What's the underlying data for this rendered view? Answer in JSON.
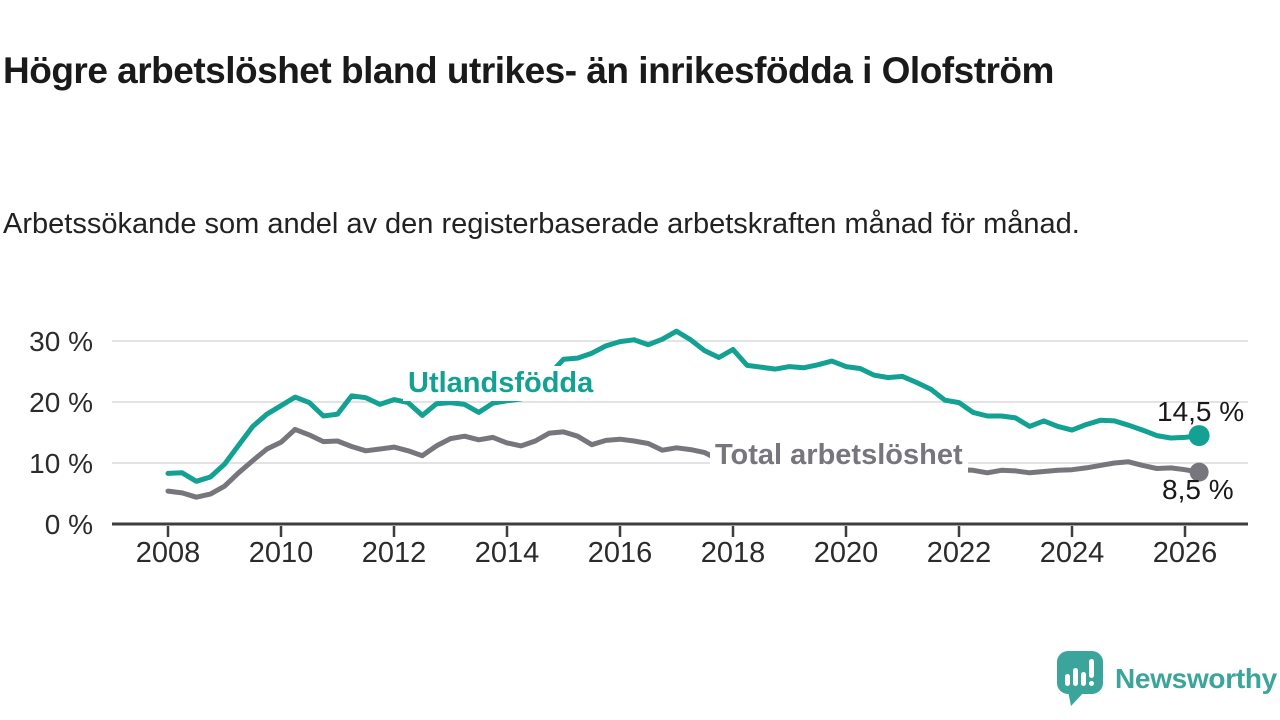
{
  "header": {
    "title": "Högre arbetslöshet bland utrikes- än inrikesfödda i Olofström",
    "subtitle": "Arbetssökande som andel av den registerbaserade arbetskraften månad för månad."
  },
  "chart_data": {
    "type": "line",
    "title": "Högre arbetslöshet bland utrikes- än inrikesfödda i Olofström",
    "subtitle": "Arbetssökande som andel av den registerbaserade arbetskraften månad för månad.",
    "x_unit": "year (monthly series shown, sampled quarterly here)",
    "grid": "horizontal",
    "legend_position": "inline-labels-on-lines",
    "ylim": [
      0,
      33
    ],
    "x": [
      2008.0,
      2008.25,
      2008.5,
      2008.75,
      2009.0,
      2009.25,
      2009.5,
      2009.75,
      2010.0,
      2010.25,
      2010.5,
      2010.75,
      2011.0,
      2011.25,
      2011.5,
      2011.75,
      2012.0,
      2012.25,
      2012.5,
      2012.75,
      2013.0,
      2013.25,
      2013.5,
      2013.75,
      2014.0,
      2014.25,
      2014.5,
      2014.75,
      2015.0,
      2015.25,
      2015.5,
      2015.75,
      2016.0,
      2016.25,
      2016.5,
      2016.75,
      2017.0,
      2017.25,
      2017.5,
      2017.75,
      2018.0,
      2018.25,
      2018.5,
      2018.75,
      2019.0,
      2019.25,
      2019.5,
      2019.75,
      2020.0,
      2020.25,
      2020.5,
      2020.75,
      2021.0,
      2021.25,
      2021.5,
      2021.75,
      2022.0,
      2022.25,
      2022.5,
      2022.75,
      2023.0,
      2023.25,
      2023.5,
      2023.75,
      2024.0,
      2024.25,
      2024.5,
      2024.75,
      2025.0,
      2025.25,
      2025.5,
      2025.75,
      2026.0,
      2026.25
    ],
    "series": [
      {
        "name": "Utlandsfödda",
        "color": "#12a192",
        "end_label": "14,5 %",
        "end_value": 14.5,
        "values": [
          8.3,
          8.4,
          7.0,
          7.7,
          9.8,
          12.9,
          16.0,
          18.0,
          19.4,
          20.8,
          19.9,
          17.7,
          18.0,
          21.0,
          20.7,
          19.6,
          20.4,
          19.9,
          17.8,
          19.7,
          19.9,
          19.6,
          18.3,
          19.8,
          20.2,
          20.5,
          21.2,
          24.5,
          27.0,
          27.2,
          28.0,
          29.2,
          29.9,
          30.2,
          29.4,
          30.3,
          31.6,
          30.2,
          28.4,
          27.3,
          28.6,
          26.0,
          25.7,
          25.4,
          25.8,
          25.6,
          26.1,
          26.7,
          25.8,
          25.5,
          24.4,
          24.0,
          24.2,
          23.2,
          22.1,
          20.3,
          19.9,
          18.3,
          17.7,
          17.7,
          17.4,
          16.0,
          16.9,
          16.0,
          15.4,
          16.3,
          17.0,
          16.9,
          16.2,
          15.4,
          14.5,
          14.1,
          14.2,
          14.5
        ]
      },
      {
        "name": "Total arbetslöshet",
        "color": "#76767c",
        "end_label": "8,5 %",
        "end_value": 8.5,
        "values": [
          5.4,
          5.1,
          4.4,
          4.9,
          6.2,
          8.4,
          10.4,
          12.3,
          13.4,
          15.5,
          14.6,
          13.5,
          13.6,
          12.7,
          12.0,
          12.3,
          12.6,
          12.0,
          11.2,
          12.8,
          14.0,
          14.4,
          13.8,
          14.2,
          13.3,
          12.8,
          13.6,
          14.9,
          15.1,
          14.4,
          13.0,
          13.7,
          13.9,
          13.6,
          13.2,
          12.1,
          12.5,
          12.2,
          11.7,
          10.5,
          10.0,
          9.6,
          9.4,
          9.3,
          9.2,
          9.1,
          9.2,
          9.3,
          9.5,
          10.0,
          10.0,
          9.7,
          9.5,
          9.3,
          9.1,
          9.0,
          8.9,
          8.8,
          8.4,
          8.8,
          8.7,
          8.4,
          8.6,
          8.8,
          8.9,
          9.2,
          9.6,
          10.0,
          10.2,
          9.6,
          9.1,
          9.2,
          8.9,
          8.5
        ]
      }
    ],
    "xticks": [
      {
        "value": 2008,
        "label": "2008"
      },
      {
        "value": 2010,
        "label": "2010"
      },
      {
        "value": 2012,
        "label": "2012"
      },
      {
        "value": 2014,
        "label": "2014"
      },
      {
        "value": 2016,
        "label": "2016"
      },
      {
        "value": 2018,
        "label": "2018"
      },
      {
        "value": 2020,
        "label": "2020"
      },
      {
        "value": 2022,
        "label": "2022"
      },
      {
        "value": 2024,
        "label": "2024"
      },
      {
        "value": 2026,
        "label": "2026"
      }
    ],
    "yticks": [
      {
        "value": 0,
        "label": "0 %"
      },
      {
        "value": 10,
        "label": "10 %"
      },
      {
        "value": 20,
        "label": "20 %"
      },
      {
        "value": 30,
        "label": "30 %"
      }
    ],
    "colors": {
      "grid": "#e3e3e3",
      "axis": "#3d3d3d",
      "annotation_text": "#191919"
    }
  },
  "footer": {
    "brand": "Newsworthy",
    "brand_color": "#3ba49b"
  }
}
